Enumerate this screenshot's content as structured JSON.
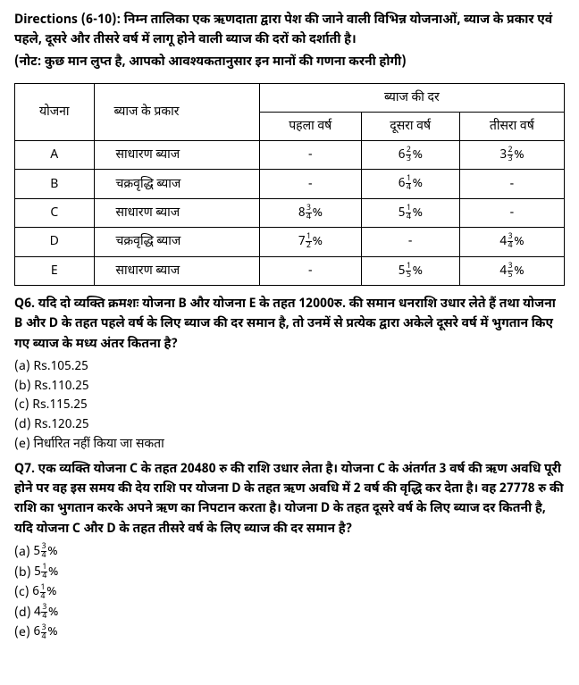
{
  "directions": "Directions (6-10): निम्न तालिका एक ऋणदाता द्वारा पेश की जाने वाली विभिन्न योजनाओं, ब्याज के प्रकार एवं पहले, दूसरे और तीसरे वर्ष में लागू होने वाली ब्याज की दरों को दर्शाती है।",
  "note": "(नोट: कुछ मान लुप्त है, आपको आवश्यकतानुसार इन मानों की गणना करनी होगी)",
  "table": {
    "col_yojana": "योजना",
    "col_type": "ब्याज के प्रकार",
    "col_rate_header": "ब्याज की दर",
    "col_y1": "पहला वर्ष",
    "col_y2": "दूसरा वर्ष",
    "col_y3": "तीसरा वर्ष",
    "rows": {
      "A": {
        "scheme": "A",
        "type": "साधारण ब्याज",
        "y1": "-",
        "y2": {
          "w": "6",
          "n": "2",
          "d": "3"
        },
        "y3": {
          "w": "3",
          "n": "2",
          "d": "3"
        }
      },
      "B": {
        "scheme": "B",
        "type": "चक्रवृद्धि ब्याज",
        "y1": "-",
        "y2": {
          "w": "6",
          "n": "1",
          "d": "4"
        },
        "y3": "-"
      },
      "C": {
        "scheme": "C",
        "type": "साधारण ब्याज",
        "y1": {
          "w": "8",
          "n": "3",
          "d": "4"
        },
        "y2": {
          "w": "5",
          "n": "1",
          "d": "4"
        },
        "y3": "-"
      },
      "D": {
        "scheme": "D",
        "type": "चक्रवृद्धि ब्याज",
        "y1": {
          "w": "7",
          "n": "1",
          "d": "2"
        },
        "y2": "-",
        "y3": {
          "w": "4",
          "n": "3",
          "d": "4"
        }
      },
      "E": {
        "scheme": "E",
        "type": "साधारण ब्याज",
        "y1": "-",
        "y2": {
          "w": "5",
          "n": "1",
          "d": "5"
        },
        "y3": {
          "w": "4",
          "n": "3",
          "d": "5"
        }
      }
    }
  },
  "q6": {
    "text": "Q6. यदि दो व्यक्ति क्रमशः योजना B और योजना E के तहत 12000रु. की समान धनराशि उधार लेते हैं तथा योजना B और D के तहत पहले वर्ष के लिए ब्याज की दर समान है, तो उनमें से प्रत्येक द्वारा अकेले दूसरे वर्ष में भुगतान किए गए ब्याज के मध्य अंतर कितना है?",
    "a": "(a) Rs.105.25",
    "b": "(b) Rs.110.25",
    "c": "(c) Rs.115.25",
    "d": "(d) Rs.120.25",
    "e": "(e) निर्धारित नहीं किया जा सकता"
  },
  "q7": {
    "text": "Q7. एक व्यक्ति योजना C के तहत 20480 रु की राशि उधार लेता है। योजना C के अंतर्गत 3 वर्ष की ऋण अवधि पूरी होने पर वह इस समय की देय राशि पर योजना D के तहत ऋण अवधि में 2 वर्ष की वृद्धि कर देता है। वह 27778 रु की राशि का भुगतान करके अपने ऋण का निपटान करता है। योजना D के तहत दूसरे वर्ष के लिए ब्याज दर कितनी है, यदि योजना C और D के तहत तीसरे वर्ष के लिए ब्याज की दर समान है?",
    "opts": {
      "a": {
        "pre": "(a) ",
        "w": "5",
        "n": "3",
        "d": "4"
      },
      "b": {
        "pre": "(b) ",
        "w": "5",
        "n": "1",
        "d": "4"
      },
      "c": {
        "pre": "(c) ",
        "w": "6",
        "n": "1",
        "d": "4"
      },
      "d": {
        "pre": "(d) ",
        "w": "4",
        "n": "3",
        "d": "4"
      },
      "e": {
        "pre": "(e) ",
        "w": "6",
        "n": "3",
        "d": "4"
      }
    }
  }
}
